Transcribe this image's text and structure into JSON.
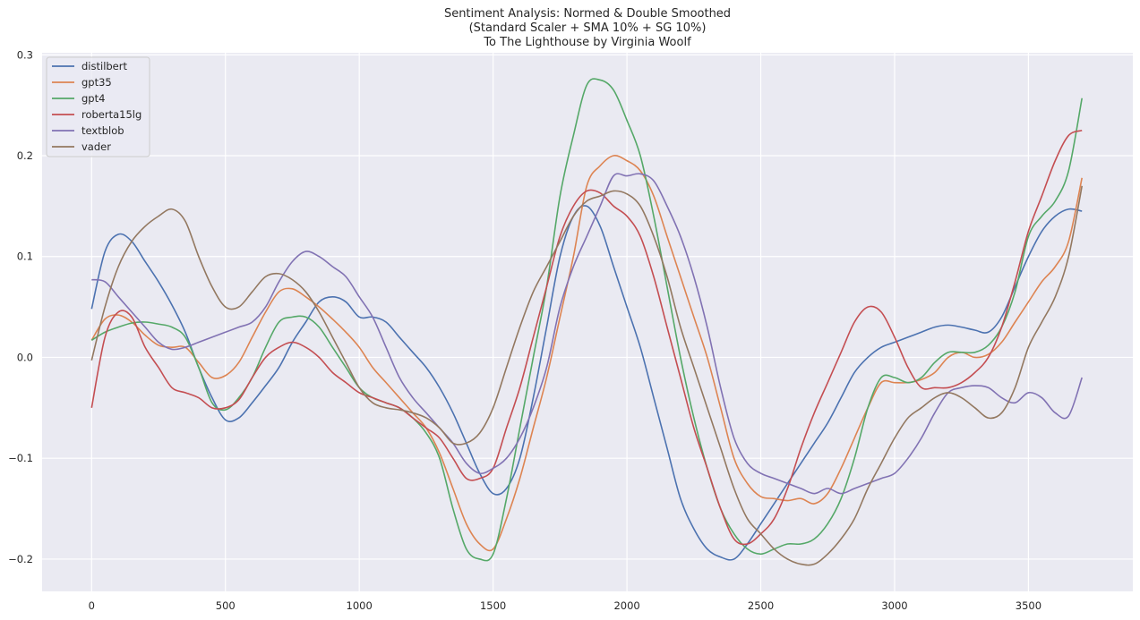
{
  "chart_data": {
    "type": "line",
    "title": [
      "Sentiment Analysis: Normed & Double Smoothed",
      "(Standard Scaler + SMA 10% + SG 10%)",
      "To The Lighthouse by Virginia Woolf"
    ],
    "xlabel": "",
    "ylabel": "",
    "xlim": [
      -185,
      3890
    ],
    "ylim": [
      -0.232,
      0.302
    ],
    "xticks": [
      0,
      500,
      1000,
      1500,
      2000,
      2500,
      3000,
      3500
    ],
    "yticks": [
      -0.2,
      -0.1,
      0.0,
      0.1,
      0.2,
      0.3
    ],
    "ytick_labels": [
      "−0.2",
      "−0.1",
      "0.0",
      "0.1",
      "0.2",
      "0.3"
    ],
    "grid": true,
    "legend_position": "upper-left",
    "x": [
      0,
      50,
      100,
      150,
      200,
      250,
      300,
      350,
      400,
      450,
      500,
      550,
      600,
      650,
      700,
      750,
      800,
      850,
      900,
      950,
      1000,
      1050,
      1100,
      1150,
      1200,
      1250,
      1300,
      1350,
      1400,
      1450,
      1500,
      1550,
      1600,
      1650,
      1700,
      1750,
      1800,
      1850,
      1900,
      1950,
      2000,
      2050,
      2100,
      2150,
      2200,
      2250,
      2300,
      2350,
      2400,
      2450,
      2500,
      2550,
      2600,
      2650,
      2700,
      2750,
      2800,
      2850,
      2900,
      2950,
      3000,
      3050,
      3100,
      3150,
      3200,
      3250,
      3300,
      3350,
      3400,
      3450,
      3500,
      3550,
      3600,
      3650,
      3700
    ],
    "series": [
      {
        "name": "distilbert",
        "color": "#4c72b0",
        "values": [
          0.048,
          0.105,
          0.122,
          0.115,
          0.095,
          0.075,
          0.052,
          0.025,
          -0.01,
          -0.04,
          -0.062,
          -0.06,
          -0.045,
          -0.028,
          -0.01,
          0.015,
          0.035,
          0.055,
          0.06,
          0.055,
          0.04,
          0.04,
          0.035,
          0.02,
          0.005,
          -0.01,
          -0.03,
          -0.055,
          -0.085,
          -0.115,
          -0.135,
          -0.13,
          -0.1,
          -0.04,
          0.03,
          0.1,
          0.14,
          0.15,
          0.13,
          0.09,
          0.05,
          0.01,
          -0.04,
          -0.09,
          -0.14,
          -0.17,
          -0.19,
          -0.198,
          -0.2,
          -0.185,
          -0.165,
          -0.145,
          -0.125,
          -0.105,
          -0.085,
          -0.065,
          -0.04,
          -0.015,
          0.0,
          0.01,
          0.015,
          0.02,
          0.025,
          0.03,
          0.032,
          0.03,
          0.027,
          0.025,
          0.04,
          0.07,
          0.1,
          0.125,
          0.14,
          0.147,
          0.145
        ]
      },
      {
        "name": "gpt35",
        "color": "#dd8452",
        "values": [
          0.017,
          0.038,
          0.042,
          0.035,
          0.022,
          0.012,
          0.01,
          0.01,
          -0.005,
          -0.02,
          -0.018,
          -0.005,
          0.02,
          0.045,
          0.065,
          0.068,
          0.06,
          0.05,
          0.038,
          0.025,
          0.01,
          -0.01,
          -0.025,
          -0.04,
          -0.055,
          -0.07,
          -0.095,
          -0.13,
          -0.165,
          -0.185,
          -0.19,
          -0.16,
          -0.12,
          -0.07,
          -0.02,
          0.04,
          0.1,
          0.17,
          0.19,
          0.2,
          0.195,
          0.185,
          0.16,
          0.12,
          0.08,
          0.04,
          0.0,
          -0.05,
          -0.1,
          -0.125,
          -0.138,
          -0.14,
          -0.142,
          -0.14,
          -0.145,
          -0.135,
          -0.11,
          -0.08,
          -0.05,
          -0.025,
          -0.025,
          -0.025,
          -0.022,
          -0.015,
          0.0,
          0.005,
          0.0,
          0.003,
          0.015,
          0.035,
          0.055,
          0.075,
          0.09,
          0.115,
          0.178
        ]
      },
      {
        "name": "gpt4",
        "color": "#55a868",
        "values": [
          0.017,
          0.025,
          0.03,
          0.034,
          0.035,
          0.033,
          0.03,
          0.02,
          -0.01,
          -0.045,
          -0.052,
          -0.04,
          -0.02,
          0.01,
          0.035,
          0.04,
          0.04,
          0.03,
          0.01,
          -0.01,
          -0.03,
          -0.04,
          -0.045,
          -0.05,
          -0.06,
          -0.075,
          -0.1,
          -0.15,
          -0.19,
          -0.2,
          -0.195,
          -0.14,
          -0.07,
          0.0,
          0.07,
          0.16,
          0.22,
          0.27,
          0.275,
          0.265,
          0.235,
          0.2,
          0.14,
          0.07,
          0.0,
          -0.06,
          -0.11,
          -0.15,
          -0.175,
          -0.19,
          -0.195,
          -0.19,
          -0.185,
          -0.185,
          -0.18,
          -0.165,
          -0.14,
          -0.1,
          -0.05,
          -0.02,
          -0.02,
          -0.025,
          -0.02,
          -0.005,
          0.005,
          0.005,
          0.005,
          0.012,
          0.03,
          0.065,
          0.12,
          0.14,
          0.155,
          0.185,
          0.257
        ]
      },
      {
        "name": "roberta15lg",
        "color": "#c44e52",
        "values": [
          -0.05,
          0.02,
          0.045,
          0.04,
          0.01,
          -0.01,
          -0.03,
          -0.035,
          -0.04,
          -0.05,
          -0.05,
          -0.042,
          -0.02,
          0.0,
          0.01,
          0.015,
          0.01,
          0.0,
          -0.015,
          -0.025,
          -0.035,
          -0.04,
          -0.045,
          -0.05,
          -0.06,
          -0.07,
          -0.08,
          -0.1,
          -0.12,
          -0.12,
          -0.11,
          -0.07,
          -0.03,
          0.02,
          0.07,
          0.12,
          0.15,
          0.165,
          0.163,
          0.15,
          0.14,
          0.12,
          0.08,
          0.03,
          -0.02,
          -0.07,
          -0.11,
          -0.15,
          -0.18,
          -0.185,
          -0.175,
          -0.16,
          -0.13,
          -0.09,
          -0.055,
          -0.025,
          0.005,
          0.035,
          0.05,
          0.045,
          0.02,
          -0.01,
          -0.03,
          -0.03,
          -0.03,
          -0.025,
          -0.015,
          0.0,
          0.03,
          0.075,
          0.125,
          0.16,
          0.195,
          0.22,
          0.225
        ]
      },
      {
        "name": "textblob",
        "color": "#8172b3",
        "values": [
          0.077,
          0.075,
          0.06,
          0.045,
          0.03,
          0.015,
          0.008,
          0.01,
          0.015,
          0.02,
          0.025,
          0.03,
          0.035,
          0.05,
          0.075,
          0.095,
          0.105,
          0.1,
          0.09,
          0.08,
          0.06,
          0.04,
          0.01,
          -0.02,
          -0.04,
          -0.055,
          -0.07,
          -0.085,
          -0.105,
          -0.115,
          -0.11,
          -0.1,
          -0.08,
          -0.05,
          -0.01,
          0.05,
          0.09,
          0.12,
          0.15,
          0.18,
          0.18,
          0.182,
          0.175,
          0.15,
          0.12,
          0.08,
          0.03,
          -0.03,
          -0.08,
          -0.105,
          -0.115,
          -0.12,
          -0.125,
          -0.13,
          -0.135,
          -0.13,
          -0.135,
          -0.13,
          -0.125,
          -0.12,
          -0.115,
          -0.1,
          -0.08,
          -0.055,
          -0.035,
          -0.03,
          -0.028,
          -0.03,
          -0.04,
          -0.045,
          -0.035,
          -0.04,
          -0.055,
          -0.058,
          -0.02
        ]
      },
      {
        "name": "vader",
        "color": "#937860",
        "values": [
          -0.003,
          0.05,
          0.09,
          0.115,
          0.13,
          0.14,
          0.147,
          0.135,
          0.1,
          0.07,
          0.05,
          0.05,
          0.065,
          0.08,
          0.083,
          0.077,
          0.065,
          0.045,
          0.02,
          -0.005,
          -0.03,
          -0.045,
          -0.05,
          -0.052,
          -0.055,
          -0.06,
          -0.07,
          -0.085,
          -0.085,
          -0.075,
          -0.05,
          -0.01,
          0.03,
          0.065,
          0.09,
          0.115,
          0.14,
          0.155,
          0.16,
          0.165,
          0.162,
          0.15,
          0.12,
          0.08,
          0.03,
          -0.01,
          -0.05,
          -0.09,
          -0.13,
          -0.16,
          -0.175,
          -0.19,
          -0.2,
          -0.205,
          -0.205,
          -0.195,
          -0.18,
          -0.16,
          -0.13,
          -0.105,
          -0.08,
          -0.06,
          -0.05,
          -0.04,
          -0.035,
          -0.04,
          -0.05,
          -0.06,
          -0.055,
          -0.03,
          0.01,
          0.035,
          0.06,
          0.1,
          0.17
        ]
      }
    ]
  }
}
